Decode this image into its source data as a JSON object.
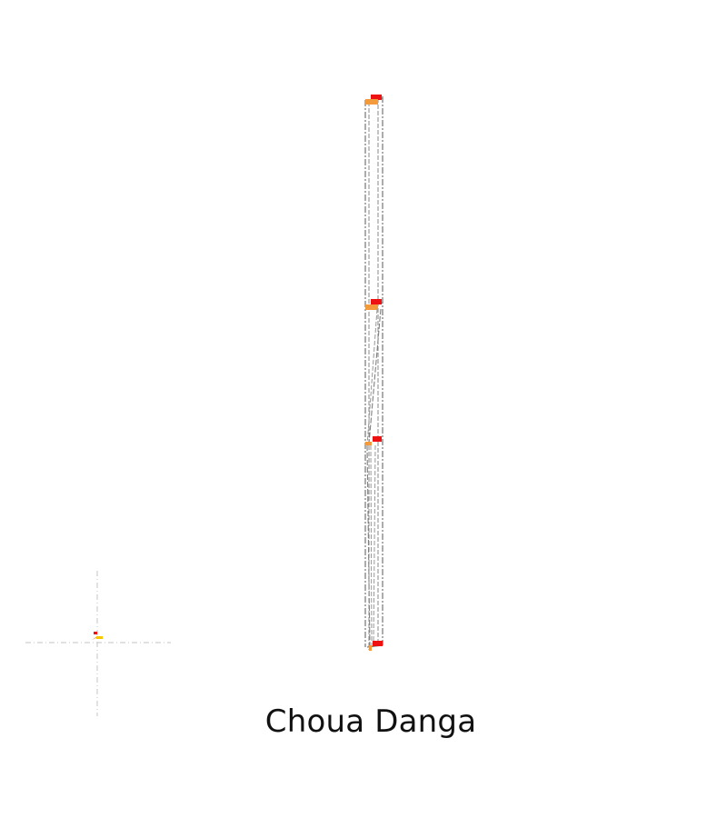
{
  "caption": "Choua Danga",
  "colors": {
    "background": "#ffffff",
    "outline": "#808080",
    "dash": "#555555",
    "marker_red": "#ee1111",
    "marker_orange": "#f29a3c",
    "marker_yellow": "#f7c600",
    "crosshair": "#cfcfcf"
  }
}
